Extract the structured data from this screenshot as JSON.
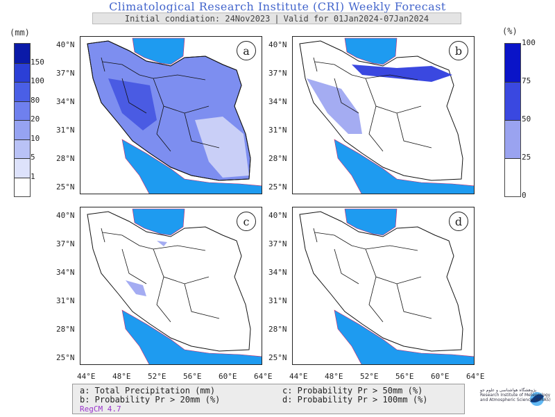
{
  "header": {
    "title": "Climatological Research Institute (CRI) Weekly Forecast",
    "initial_condition": "Initial condiation: 24Nov2023",
    "separator": "|",
    "valid_for": "Valid for 01Jan2024-07Jan2024"
  },
  "left_colorbar": {
    "unit": "(mm)",
    "levels": [
      "150",
      "100",
      "80",
      "20",
      "10",
      "5",
      "1"
    ],
    "colors": [
      "#0a1aa8",
      "#2b3fd6",
      "#4a5fe6",
      "#6f80ee",
      "#96a3f2",
      "#b9c2f6",
      "#dde2fb",
      "#ffffff"
    ]
  },
  "right_colorbar": {
    "unit": "(%)",
    "levels": [
      "100",
      "75",
      "50",
      "25",
      "0"
    ],
    "colors": [
      "#0a14c8",
      "#3a48e0",
      "#9aa3f0",
      "#ffffff"
    ]
  },
  "panels": [
    {
      "label": "a"
    },
    {
      "label": "b"
    },
    {
      "label": "c"
    },
    {
      "label": "d"
    }
  ],
  "lat_labels": [
    "40°N",
    "37°N",
    "34°N",
    "31°N",
    "28°N",
    "25°N"
  ],
  "lon_labels": [
    "44°E",
    "48°E",
    "52°E",
    "56°E",
    "60°E",
    "64°E"
  ],
  "legend": {
    "a": "a: Total Precipitation (mm)",
    "b": "b: Probability Pr > 20mm (%)",
    "c": "c: Probability Pr > 50mm (%)",
    "d": "d: Probability Pr > 100mm (%)",
    "model": "RegCM 4.7"
  },
  "logo": {
    "line1": "پژوهشگاه هواشناسی و علوم جو",
    "line2": "Research Institute of Meteorology",
    "line3": "and Atmospheric Science (RIMAS)"
  },
  "colors": {
    "sea": "#1e9bf0",
    "border": "#111111",
    "coast": "#cc2266",
    "title": "#4466cc"
  }
}
